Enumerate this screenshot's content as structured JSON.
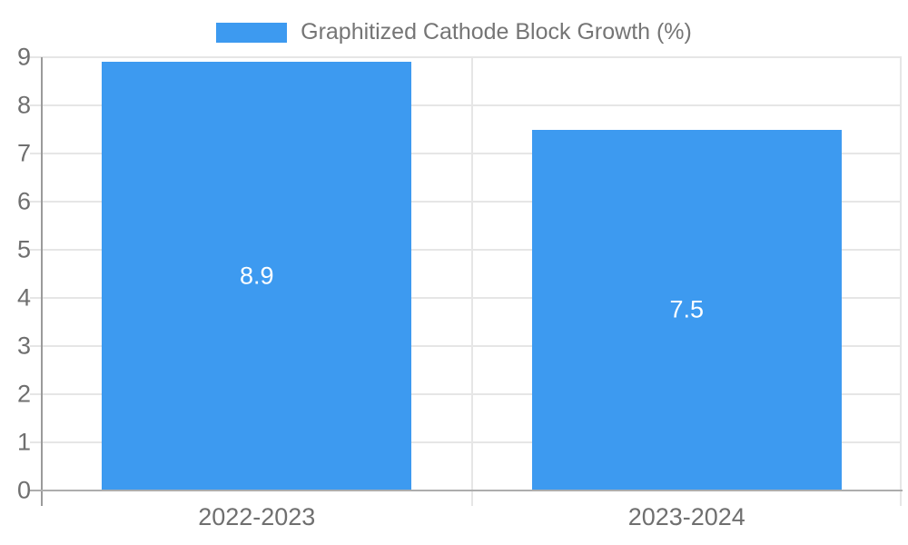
{
  "chart_data": {
    "type": "bar",
    "title": "",
    "categories": [
      "2022-2023",
      "2023-2024"
    ],
    "series": [
      {
        "name": "Graphitized Cathode Block Growth (%)",
        "values": [
          8.9,
          7.5
        ],
        "color": "#3D9AF0"
      }
    ],
    "data_labels": {
      "show": true,
      "position": "center-of-bar",
      "color": "#ffffff",
      "values": [
        "8.9",
        "7.5"
      ]
    },
    "xlabel": "",
    "ylabel": "",
    "ylim": [
      0,
      9
    ],
    "y_ticks": [
      0,
      1,
      2,
      3,
      4,
      5,
      6,
      7,
      8,
      9
    ],
    "grid": true,
    "legend_position": "top-center",
    "bar_width_ratio": 0.72
  },
  "legend": {
    "items": [
      {
        "label": "Graphitized Cathode Block Growth (%)",
        "color": "#3D9AF0"
      }
    ]
  },
  "colors": {
    "bar": "#3D9AF0",
    "axis_text": "#6f6f6f",
    "legend_text": "#757575",
    "gridline": "#e6e6e6",
    "y_axis_line": "#9a9a9a",
    "x_axis_line": "#adadad",
    "data_label_text": "#ffffff",
    "background": "#ffffff"
  }
}
